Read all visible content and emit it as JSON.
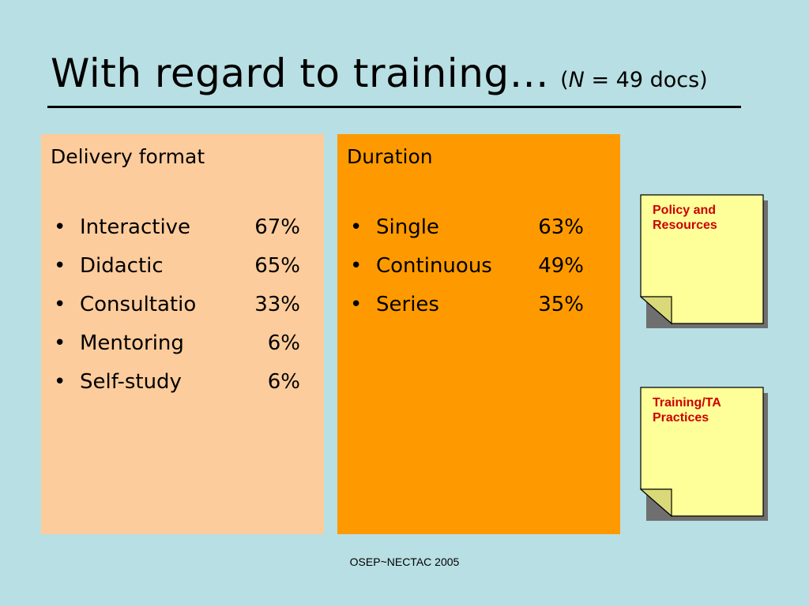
{
  "slide": {
    "title": "With regard to training…",
    "subtitle_prefix": "(",
    "subtitle_n": "N",
    "subtitle_rest": " = 49 docs)"
  },
  "delivery": {
    "heading": "Delivery format",
    "items": [
      {
        "label": "Interactive",
        "value": "67%"
      },
      {
        "label": "Didactic",
        "value": "65%"
      },
      {
        "label": "Consultatio",
        "value": "33%"
      },
      {
        "label": "Mentoring",
        "value": "6%"
      },
      {
        "label": "Self-study",
        "value": "6%"
      }
    ]
  },
  "duration": {
    "heading": "Duration",
    "items": [
      {
        "label": "Single",
        "value": "63%"
      },
      {
        "label": "Continuous",
        "value": "49%"
      },
      {
        "label": "Series",
        "value": "35%"
      }
    ]
  },
  "notes": [
    {
      "text": "Policy and Resources"
    },
    {
      "text": "Training/TA Practices"
    }
  ],
  "footer": "OSEP~NECTAC 2005",
  "colors": {
    "background": "#b8dfe3",
    "delivery_box": "#fdcc9c",
    "duration_box": "#fe9a00",
    "note_paper": "#ffff99",
    "note_text": "#cc0000"
  }
}
